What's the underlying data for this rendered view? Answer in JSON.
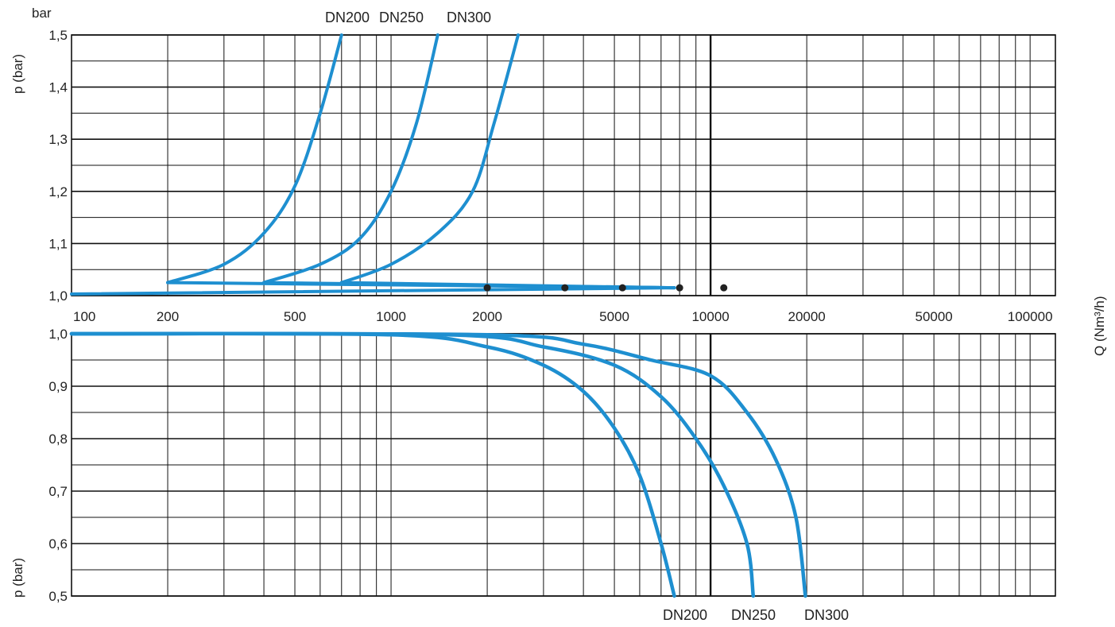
{
  "colors": {
    "curve": "#1e8fd0",
    "grid": "#111111",
    "marker": "#222222",
    "text": "#222222"
  },
  "chart_data": [
    {
      "type": "line",
      "panel": "upper",
      "unit_label": "bar",
      "ylabel": "p (bar)",
      "x_scale": "log",
      "xlim": [
        100,
        120000
      ],
      "ylim": [
        1.0,
        1.5
      ],
      "y_ticks": [
        "1,0",
        "1,1",
        "1,2",
        "1,3",
        "1,4",
        "1,5"
      ],
      "y_tick_values": [
        1.0,
        1.1,
        1.2,
        1.3,
        1.4,
        1.5
      ],
      "x_tick_labels": [
        "100",
        "200",
        "500",
        "1000",
        "2000",
        "5000",
        "10000",
        "20000",
        "50000",
        "100000"
      ],
      "x_tick_values": [
        100,
        200,
        500,
        1000,
        2000,
        5000,
        10000,
        20000,
        50000,
        100000
      ],
      "series_labels": [
        "DN200",
        "DN250",
        "DN300"
      ],
      "series": [
        {
          "name": "DN200",
          "points": [
            [
              200,
              1.025
            ],
            [
              300,
              1.06
            ],
            [
              400,
              1.12
            ],
            [
              500,
              1.21
            ],
            [
              600,
              1.35
            ],
            [
              700,
              1.5
            ]
          ]
        },
        {
          "name": "DN250",
          "points": [
            [
              400,
              1.025
            ],
            [
              600,
              1.06
            ],
            [
              800,
              1.11
            ],
            [
              1000,
              1.2
            ],
            [
              1200,
              1.33
            ],
            [
              1400,
              1.5
            ]
          ]
        },
        {
          "name": "DN300",
          "points": [
            [
              700,
              1.025
            ],
            [
              1000,
              1.06
            ],
            [
              1400,
              1.12
            ],
            [
              1800,
              1.2
            ],
            [
              2100,
              1.33
            ],
            [
              2500,
              1.5
            ]
          ]
        }
      ],
      "baseline_lines": [
        {
          "from": [
            200,
            1.025
          ],
          "to": [
            7700,
            1.015
          ]
        },
        {
          "from": [
            400,
            1.025
          ],
          "to": [
            7700,
            1.015
          ]
        },
        {
          "from": [
            700,
            1.025
          ],
          "to": [
            7700,
            1.015
          ]
        },
        {
          "from": [
            100,
            1.003
          ],
          "to": [
            7700,
            1.015
          ]
        }
      ],
      "markers": [
        {
          "x": 2000,
          "y": 1.015
        },
        {
          "x": 3500,
          "y": 1.015
        },
        {
          "x": 5300,
          "y": 1.015
        },
        {
          "x": 8000,
          "y": 1.015
        },
        {
          "x": 11000,
          "y": 1.015
        }
      ],
      "grid": true
    },
    {
      "type": "line",
      "panel": "lower",
      "xlabel": "Q (Nm³/h)",
      "ylabel": "p (bar)",
      "x_scale": "log",
      "xlim": [
        100,
        120000
      ],
      "ylim": [
        0.5,
        1.0
      ],
      "y_ticks": [
        "1,0",
        "0,9",
        "0,8",
        "0,7",
        "0,6",
        "0,5"
      ],
      "y_tick_values": [
        1.0,
        0.9,
        0.8,
        0.7,
        0.6,
        0.5
      ],
      "series_labels": [
        "DN200",
        "DN250",
        "DN300"
      ],
      "series": [
        {
          "name": "DN200",
          "points": [
            [
              100,
              1.0
            ],
            [
              1000,
              0.998
            ],
            [
              2000,
              0.975
            ],
            [
              3000,
              0.94
            ],
            [
              4000,
              0.89
            ],
            [
              5000,
              0.82
            ],
            [
              6000,
              0.73
            ],
            [
              7000,
              0.6
            ],
            [
              7700,
              0.5
            ]
          ]
        },
        {
          "name": "DN250",
          "points": [
            [
              100,
              1.0
            ],
            [
              1500,
              0.998
            ],
            [
              3000,
              0.975
            ],
            [
              5000,
              0.94
            ],
            [
              7000,
              0.88
            ],
            [
              9000,
              0.8
            ],
            [
              11000,
              0.71
            ],
            [
              13000,
              0.6
            ],
            [
              13600,
              0.5
            ]
          ]
        },
        {
          "name": "DN300",
          "points": [
            [
              100,
              1.0
            ],
            [
              2000,
              0.998
            ],
            [
              4000,
              0.98
            ],
            [
              6500,
              0.95
            ],
            [
              10000,
              0.92
            ],
            [
              13000,
              0.85
            ],
            [
              16000,
              0.76
            ],
            [
              18500,
              0.65
            ],
            [
              19800,
              0.5
            ]
          ]
        }
      ],
      "grid": true
    }
  ]
}
